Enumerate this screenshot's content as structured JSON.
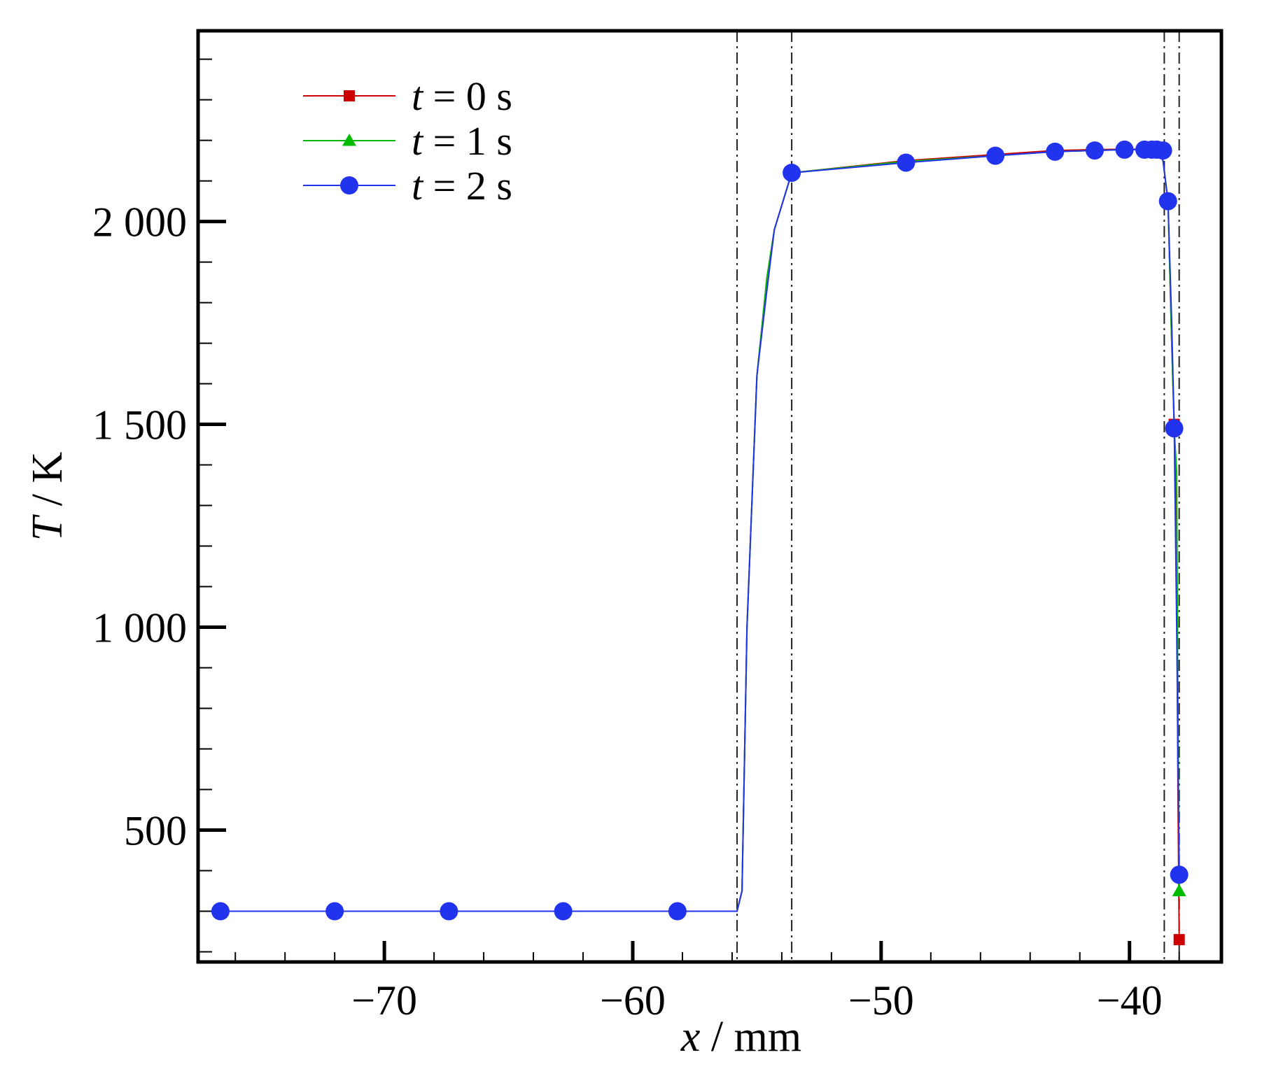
{
  "chart_data": {
    "type": "line",
    "xlabel": {
      "var": "x",
      "unit": " / mm"
    },
    "ylabel": {
      "var": "T",
      "unit": " / K"
    },
    "xlim": [
      -77.5,
      -36.3
    ],
    "ylim": [
      175,
      2470
    ],
    "x_ticks": [
      {
        "value": -70,
        "label": "−70"
      },
      {
        "value": -60,
        "label": "−60"
      },
      {
        "value": -50,
        "label": "−50"
      },
      {
        "value": -40,
        "label": "−40"
      }
    ],
    "x_minor_step": 2,
    "y_ticks": [
      {
        "value": 500,
        "label": "500"
      },
      {
        "value": 1000,
        "label": "1 000"
      },
      {
        "value": 1500,
        "label": "1 500"
      },
      {
        "value": 2000,
        "label": "2 000"
      }
    ],
    "y_minor_step": 100,
    "reference_lines": [
      {
        "x": -55.8,
        "style": "dash-dot"
      },
      {
        "x": -53.6,
        "style": "dash-dot"
      },
      {
        "x": -38.6,
        "style": "dash-dot"
      },
      {
        "x": -38.0,
        "style": "dash-dot"
      }
    ],
    "legend": {
      "position": "top-left"
    },
    "series": [
      {
        "name": {
          "var": "t",
          "rest": " = 0 s"
        },
        "color": "#cc0000",
        "marker": "square",
        "line": [
          [
            -76.6,
            300
          ],
          [
            -55.8,
            300
          ],
          [
            -55.6,
            350
          ],
          [
            -55.4,
            1000
          ],
          [
            -55.0,
            1620
          ],
          [
            -54.6,
            1860
          ],
          [
            -54.3,
            1980
          ],
          [
            -53.6,
            2120
          ],
          [
            -49.0,
            2150
          ],
          [
            -45.4,
            2165
          ],
          [
            -43.0,
            2175
          ],
          [
            -41.4,
            2177
          ],
          [
            -40.2,
            2178
          ],
          [
            -39.4,
            2178
          ],
          [
            -38.9,
            2175
          ],
          [
            -38.65,
            2150
          ],
          [
            -38.45,
            2050
          ],
          [
            -38.3,
            1700
          ],
          [
            -38.2,
            1500
          ],
          [
            -38.1,
            1200
          ],
          [
            -38.05,
            600
          ],
          [
            -38.0,
            230
          ]
        ],
        "markers": [
          [
            -76.6,
            300
          ],
          [
            -72.0,
            300
          ],
          [
            -67.4,
            300
          ],
          [
            -62.8,
            300
          ],
          [
            -58.2,
            300
          ],
          [
            -53.6,
            2120
          ],
          [
            -49.0,
            2150
          ],
          [
            -45.4,
            2165
          ],
          [
            -43.0,
            2175
          ],
          [
            -41.4,
            2177
          ],
          [
            -40.2,
            2178
          ],
          [
            -39.4,
            2178
          ],
          [
            -39.1,
            2178
          ],
          [
            -38.9,
            2178
          ],
          [
            -38.65,
            2175
          ],
          [
            -38.45,
            2050
          ],
          [
            -38.2,
            1500
          ],
          [
            -38.0,
            230
          ]
        ]
      },
      {
        "name": {
          "var": "t",
          "rest": " = 1 s"
        },
        "color": "#00bb00",
        "marker": "triangle",
        "line": [
          [
            -76.6,
            300
          ],
          [
            -55.8,
            300
          ],
          [
            -55.6,
            350
          ],
          [
            -55.4,
            1000
          ],
          [
            -55.0,
            1620
          ],
          [
            -54.6,
            1860
          ],
          [
            -54.3,
            1980
          ],
          [
            -53.6,
            2120
          ],
          [
            -49.0,
            2148
          ],
          [
            -45.4,
            2162
          ],
          [
            -43.0,
            2172
          ],
          [
            -41.4,
            2175
          ],
          [
            -40.2,
            2177
          ],
          [
            -39.4,
            2177
          ],
          [
            -38.9,
            2175
          ],
          [
            -38.65,
            2150
          ],
          [
            -38.45,
            2050
          ],
          [
            -38.3,
            1700
          ],
          [
            -38.2,
            1490
          ],
          [
            -38.1,
            1380
          ],
          [
            -38.05,
            800
          ],
          [
            -38.0,
            350
          ]
        ],
        "markers": [
          [
            -76.6,
            300
          ],
          [
            -72.0,
            300
          ],
          [
            -67.4,
            300
          ],
          [
            -62.8,
            300
          ],
          [
            -58.2,
            300
          ],
          [
            -53.6,
            2120
          ],
          [
            -49.0,
            2148
          ],
          [
            -45.4,
            2162
          ],
          [
            -43.0,
            2172
          ],
          [
            -41.4,
            2175
          ],
          [
            -40.2,
            2177
          ],
          [
            -39.4,
            2177
          ],
          [
            -39.1,
            2177
          ],
          [
            -38.9,
            2177
          ],
          [
            -38.65,
            2175
          ],
          [
            -38.45,
            2050
          ],
          [
            -38.2,
            1490
          ],
          [
            -38.0,
            350
          ]
        ]
      },
      {
        "name": {
          "var": "t",
          "rest": " = 2 s"
        },
        "color": "#2233ee",
        "marker": "circle",
        "line": [
          [
            -76.6,
            300
          ],
          [
            -55.8,
            300
          ],
          [
            -55.6,
            350
          ],
          [
            -55.4,
            1000
          ],
          [
            -55.0,
            1620
          ],
          [
            -54.6,
            1830
          ],
          [
            -54.3,
            1980
          ],
          [
            -53.6,
            2120
          ],
          [
            -49.0,
            2145
          ],
          [
            -45.4,
            2162
          ],
          [
            -43.0,
            2172
          ],
          [
            -41.4,
            2175
          ],
          [
            -40.2,
            2177
          ],
          [
            -39.4,
            2177
          ],
          [
            -38.9,
            2175
          ],
          [
            -38.65,
            2150
          ],
          [
            -38.45,
            2050
          ],
          [
            -38.3,
            1750
          ],
          [
            -38.2,
            1490
          ],
          [
            -38.1,
            1000
          ],
          [
            -38.0,
            390
          ]
        ],
        "markers": [
          [
            -76.6,
            300
          ],
          [
            -72.0,
            300
          ],
          [
            -67.4,
            300
          ],
          [
            -62.8,
            300
          ],
          [
            -58.2,
            300
          ],
          [
            -53.6,
            2120
          ],
          [
            -49.0,
            2145
          ],
          [
            -45.4,
            2162
          ],
          [
            -43.0,
            2172
          ],
          [
            -41.4,
            2175
          ],
          [
            -40.2,
            2177
          ],
          [
            -39.4,
            2177
          ],
          [
            -39.1,
            2177
          ],
          [
            -38.9,
            2177
          ],
          [
            -38.65,
            2175
          ],
          [
            -38.45,
            2050
          ],
          [
            -38.2,
            1490
          ],
          [
            -38.0,
            390
          ]
        ]
      }
    ]
  }
}
